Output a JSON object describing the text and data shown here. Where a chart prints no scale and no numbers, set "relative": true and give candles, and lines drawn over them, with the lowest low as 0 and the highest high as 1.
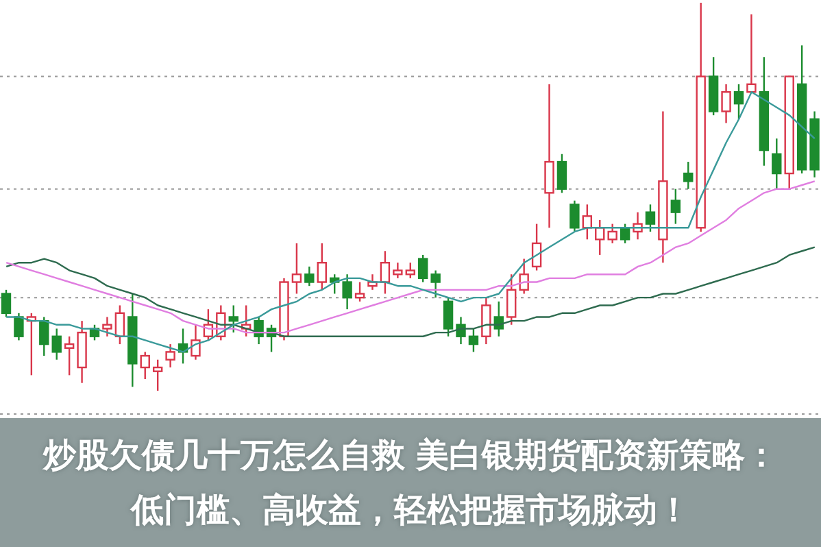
{
  "chart_data": {
    "type": "candlestick",
    "title": "炒股欠债几十万怎么自救 美白银期货配资新策略：低门槛、高收益，轻松把握市场脉动！",
    "relative": true,
    "grid": "y",
    "tick_labels": false,
    "line_style": "solid",
    "marker": "none",
    "categories": [
      null,
      null,
      null,
      null,
      null,
      null,
      null,
      null,
      null,
      null,
      null,
      null,
      null,
      null,
      null,
      null,
      null,
      null,
      null,
      null,
      null,
      null,
      null,
      null,
      null,
      null,
      null,
      null,
      null,
      null,
      null,
      null,
      null,
      null,
      null,
      null,
      null,
      null,
      null,
      null,
      null,
      null,
      null,
      null,
      null,
      null,
      null,
      null,
      null,
      null,
      null,
      null,
      null,
      null,
      null,
      null,
      null,
      null,
      null,
      null,
      null,
      null,
      null,
      null,
      null
    ],
    "ohlc": [
      [
        0.25,
        0.26,
        0.19,
        0.2
      ],
      [
        0.19,
        0.2,
        0.13,
        0.14
      ],
      [
        0.18,
        0.2,
        0.04,
        0.19
      ],
      [
        0.18,
        0.19,
        0.09,
        0.12
      ],
      [
        0.14,
        0.16,
        0.08,
        0.1
      ],
      [
        0.11,
        0.14,
        0.04,
        0.12
      ],
      [
        0.06,
        0.18,
        0.02,
        0.15
      ],
      [
        0.16,
        0.17,
        0.13,
        0.14
      ],
      [
        0.16,
        0.19,
        0.14,
        0.17
      ],
      [
        0.14,
        0.22,
        0.12,
        0.2
      ],
      [
        0.19,
        0.25,
        0.01,
        0.07
      ],
      [
        0.06,
        0.1,
        0.03,
        0.09
      ],
      [
        0.05,
        0.08,
        0.0,
        0.06
      ],
      [
        0.08,
        0.12,
        0.06,
        0.1
      ],
      [
        0.12,
        0.16,
        0.07,
        0.1
      ],
      [
        0.09,
        0.17,
        0.08,
        0.13
      ],
      [
        0.14,
        0.21,
        0.13,
        0.17
      ],
      [
        0.14,
        0.22,
        0.13,
        0.2
      ],
      [
        0.19,
        0.22,
        0.15,
        0.18
      ],
      [
        0.16,
        0.22,
        0.14,
        0.17
      ],
      [
        0.18,
        0.19,
        0.12,
        0.14
      ],
      [
        0.16,
        0.17,
        0.1,
        0.14
      ],
      [
        0.14,
        0.29,
        0.13,
        0.28
      ],
      [
        0.28,
        0.38,
        0.25,
        0.3
      ],
      [
        0.3,
        0.32,
        0.27,
        0.28
      ],
      [
        0.28,
        0.38,
        0.26,
        0.33
      ],
      [
        0.29,
        0.3,
        0.25,
        0.28
      ],
      [
        0.28,
        0.3,
        0.21,
        0.24
      ],
      [
        0.24,
        0.28,
        0.23,
        0.25
      ],
      [
        0.27,
        0.3,
        0.26,
        0.28
      ],
      [
        0.28,
        0.36,
        0.25,
        0.33
      ],
      [
        0.3,
        0.33,
        0.29,
        0.31
      ],
      [
        0.3,
        0.33,
        0.29,
        0.31
      ],
      [
        0.34,
        0.35,
        0.28,
        0.29
      ],
      [
        0.3,
        0.31,
        0.24,
        0.28
      ],
      [
        0.23,
        0.24,
        0.14,
        0.16
      ],
      [
        0.17,
        0.19,
        0.12,
        0.14
      ],
      [
        0.14,
        0.16,
        0.1,
        0.12
      ],
      [
        0.14,
        0.24,
        0.12,
        0.22
      ],
      [
        0.19,
        0.23,
        0.14,
        0.16
      ],
      [
        0.19,
        0.3,
        0.17,
        0.26
      ],
      [
        0.26,
        0.34,
        0.25,
        0.3
      ],
      [
        0.32,
        0.43,
        0.31,
        0.38
      ],
      [
        0.51,
        0.79,
        0.42,
        0.59
      ],
      [
        0.59,
        0.61,
        0.51,
        0.52
      ],
      [
        0.48,
        0.49,
        0.41,
        0.42
      ],
      [
        0.42,
        0.48,
        0.39,
        0.45
      ],
      [
        0.39,
        0.44,
        0.35,
        0.42
      ],
      [
        0.39,
        0.43,
        0.38,
        0.41
      ],
      [
        0.42,
        0.43,
        0.38,
        0.39
      ],
      [
        0.41,
        0.46,
        0.39,
        0.43
      ],
      [
        0.46,
        0.48,
        0.41,
        0.43
      ],
      [
        0.39,
        0.72,
        0.33,
        0.54
      ],
      [
        0.49,
        0.52,
        0.43,
        0.46
      ],
      [
        0.56,
        0.59,
        0.52,
        0.54
      ],
      [
        0.42,
        1.0,
        0.41,
        0.81
      ],
      [
        0.81,
        0.86,
        0.71,
        0.72
      ],
      [
        0.72,
        0.79,
        0.69,
        0.77
      ],
      [
        0.77,
        0.79,
        0.7,
        0.74
      ],
      [
        0.77,
        0.97,
        0.77,
        0.79
      ],
      [
        0.77,
        0.86,
        0.58,
        0.62
      ],
      [
        0.61,
        0.65,
        0.52,
        0.56
      ],
      [
        0.56,
        0.81,
        0.52,
        0.81
      ],
      [
        0.79,
        0.89,
        0.56,
        0.57
      ],
      [
        0.7,
        0.72,
        0.55,
        0.57
      ]
    ],
    "series": [
      {
        "type": "line",
        "color": "#2e6b4f",
        "values": [
          0.32,
          0.33,
          0.33,
          0.34,
          0.33,
          0.31,
          0.3,
          0.29,
          0.27,
          0.26,
          0.25,
          0.24,
          0.22,
          0.21,
          0.2,
          0.19,
          0.18,
          0.17,
          0.17,
          0.16,
          0.15,
          0.15,
          0.14,
          0.14,
          0.14,
          0.14,
          0.14,
          0.14,
          0.14,
          0.14,
          0.14,
          0.14,
          0.14,
          0.14,
          0.15,
          0.15,
          0.16,
          0.16,
          0.17,
          0.17,
          0.18,
          0.18,
          0.19,
          0.19,
          0.2,
          0.2,
          0.21,
          0.22,
          0.22,
          0.23,
          0.24,
          0.24,
          0.25,
          0.25,
          0.26,
          0.27,
          0.28,
          0.29,
          0.3,
          0.31,
          0.32,
          0.33,
          0.35,
          0.36,
          0.37
        ]
      },
      {
        "type": "line",
        "color": "#e07ee0",
        "values": [
          0.33,
          0.32,
          0.31,
          0.3,
          0.29,
          0.28,
          0.27,
          0.26,
          0.25,
          0.24,
          0.23,
          0.22,
          0.21,
          0.2,
          0.18,
          0.17,
          0.16,
          0.16,
          0.16,
          0.15,
          0.15,
          0.15,
          0.15,
          0.16,
          0.17,
          0.18,
          0.19,
          0.2,
          0.21,
          0.22,
          0.23,
          0.24,
          0.25,
          0.26,
          0.26,
          0.26,
          0.26,
          0.26,
          0.26,
          0.27,
          0.27,
          0.28,
          0.28,
          0.29,
          0.29,
          0.29,
          0.3,
          0.3,
          0.3,
          0.3,
          0.32,
          0.33,
          0.35,
          0.37,
          0.38,
          0.4,
          0.42,
          0.44,
          0.47,
          0.49,
          0.51,
          0.52,
          0.52,
          0.53,
          0.54
        ]
      },
      {
        "type": "line",
        "color": "#3a9a9a",
        "values": [
          0.19,
          0.19,
          0.18,
          0.18,
          0.17,
          0.17,
          0.16,
          0.16,
          0.15,
          0.14,
          0.14,
          0.13,
          0.12,
          0.11,
          0.1,
          0.12,
          0.13,
          0.15,
          0.17,
          0.18,
          0.19,
          0.21,
          0.22,
          0.23,
          0.25,
          0.26,
          0.28,
          0.29,
          0.29,
          0.28,
          0.28,
          0.27,
          0.27,
          0.26,
          0.25,
          0.24,
          0.23,
          0.24,
          0.24,
          0.25,
          0.29,
          0.33,
          0.35,
          0.37,
          0.39,
          0.41,
          0.42,
          0.42,
          0.42,
          0.42,
          0.42,
          0.42,
          0.42,
          0.42,
          0.42,
          0.5,
          0.57,
          0.64,
          0.7,
          0.77,
          0.75,
          0.73,
          0.71,
          0.68,
          0.65
        ]
      }
    ]
  }
}
